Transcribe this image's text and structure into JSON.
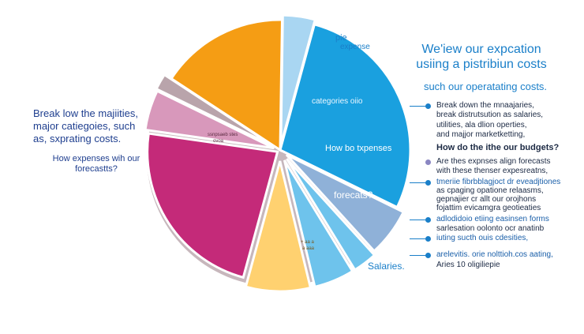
{
  "chart_data": {
    "type": "pie",
    "title": "",
    "slices": [
      {
        "label": "",
        "value": 4,
        "color": "#a9d6f2"
      },
      {
        "label": "",
        "value": 28,
        "color": "#1aa0df"
      },
      {
        "label": "",
        "value": 6,
        "color": "#8fb1d8"
      },
      {
        "label": "",
        "value": 3,
        "color": "#6ec3ec"
      },
      {
        "label": "",
        "value": 5,
        "color": "#6ec3ec"
      },
      {
        "label": "",
        "value": 8,
        "color": "#ffd170"
      },
      {
        "label": "",
        "value": 23,
        "color": "#c42a79"
      },
      {
        "label": "",
        "value": 5,
        "color": "#d898bb"
      },
      {
        "label": "",
        "value": 2,
        "color": "#b9a4ab"
      },
      {
        "label": "",
        "value": 16,
        "color": "#f59d14"
      }
    ]
  },
  "pie_text": {
    "top_tag_line1": "pie",
    "top_tag_line2": "expense",
    "blue_inner": "categories oiio",
    "blue_mid": "How bo txpenses",
    "steel_label": "forecats?",
    "yellow_small1": "+ aa a",
    "yellow_small2": "a  aaa",
    "pink_small1": "ssnpsaeb stes",
    "pink_small2": "ovoa",
    "salaries": "Salaries."
  },
  "left_text": {
    "block1": [
      "Break low the majiities,",
      "major catiegoies, such",
      "as, sxprating costs."
    ],
    "block2": [
      "How expenses wih our",
      "forecastts?"
    ]
  },
  "right_text": {
    "heading": [
      "We'iew our expcation",
      "usiing a pistribiun costs"
    ],
    "subheading": "such our operatating costs.",
    "items": [
      {
        "text": "Break down the mnaajaries,",
        "color": "#1a7fc9",
        "bold": false,
        "lead": true
      },
      {
        "text": "break  distrutsution as salaries,",
        "color": "",
        "bold": false,
        "lead": false
      },
      {
        "text": "utilities,  ala  dlion operties,",
        "color": "",
        "bold": false,
        "lead": false
      },
      {
        "text": "and majjor marketketting,",
        "color": "",
        "bold": false,
        "lead": false
      },
      {
        "text": "How do the ithe our budgets?",
        "color": "",
        "bold": true,
        "lead": false
      },
      {
        "text": "Are thes expnses align forecasts",
        "color": "#8a86c2",
        "bold": false,
        "lead": false
      },
      {
        "text": "with  these thenser expesreatns,",
        "color": "",
        "bold": false,
        "lead": false
      },
      {
        "text": "tmeriie fibrbblagjoct dr eveadjtiones",
        "color": "#1a7fc9",
        "bold": false,
        "lead": true
      },
      {
        "text": "as cpaging opatione relaasms,",
        "color": "",
        "bold": false,
        "lead": false
      },
      {
        "text": "gepnajier cr allt our orojhons",
        "color": "",
        "bold": false,
        "lead": false
      },
      {
        "text": "fojattim evicamgra geotieaties",
        "color": "",
        "bold": false,
        "lead": false
      },
      {
        "text": "adlodidoio etiing easinsen forms",
        "color": "#1a7fc9",
        "bold": false,
        "lead": true
      },
      {
        "text": "sarlesation oolonto ocr anatinb",
        "color": "",
        "bold": false,
        "lead": false
      },
      {
        "text": "iuting sucth ouis cdesities,",
        "color": "#1a7fc9",
        "bold": false,
        "lead": true
      },
      {
        "text": "arelevitis. orie nolttioh.cos aating,",
        "color": "#1a7fc9",
        "bold": false,
        "lead": true
      },
      {
        "text": "Aries 10 oligiliepie",
        "color": "",
        "bold": false,
        "lead": false
      }
    ]
  }
}
